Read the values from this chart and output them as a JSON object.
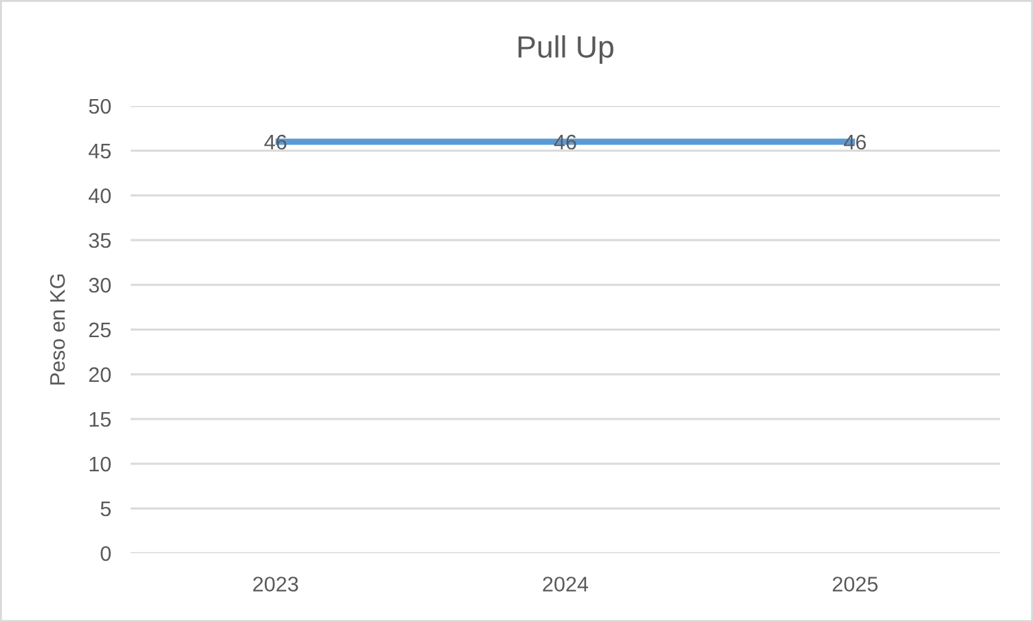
{
  "chart_data": {
    "type": "line",
    "title": "Pull Up",
    "ylabel": "Peso en KG",
    "categories": [
      "2023",
      "2024",
      "2025"
    ],
    "series": [
      {
        "color": "#5b9bd5",
        "values": [
          46,
          46,
          46
        ]
      }
    ],
    "ylim": [
      0,
      50
    ],
    "yticks": [
      0,
      5,
      10,
      15,
      20,
      25,
      30,
      35,
      40,
      45,
      50
    ],
    "grid": "y",
    "data_labels": true
  }
}
